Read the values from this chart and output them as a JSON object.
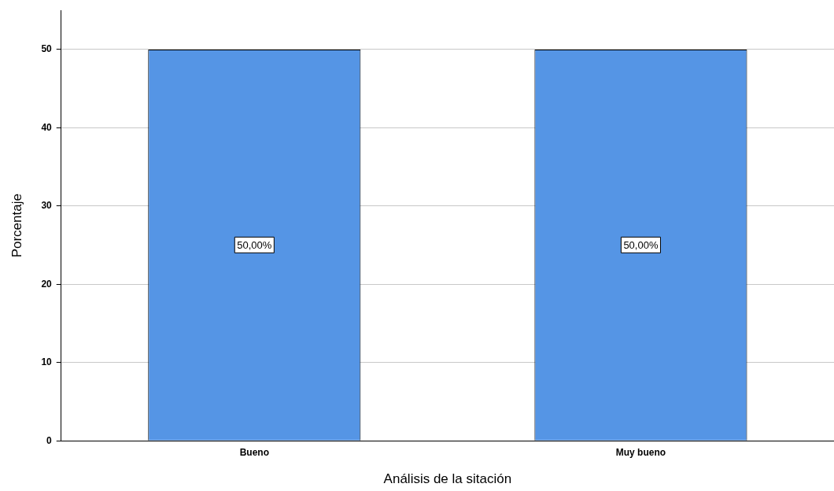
{
  "chart_data": {
    "type": "bar",
    "xlabel": "Análisis de la sitación",
    "ylabel": "Porcentaje",
    "categories": [
      "Bueno",
      "Muy bueno"
    ],
    "values": [
      50,
      50
    ],
    "color": "#5595e5",
    "value_labels": [
      "50,00%",
      "50,00%"
    ],
    "ylim": [
      0,
      55
    ],
    "yticks": [
      0,
      10,
      20,
      30,
      40,
      50
    ],
    "grid": "y",
    "legend": false
  }
}
